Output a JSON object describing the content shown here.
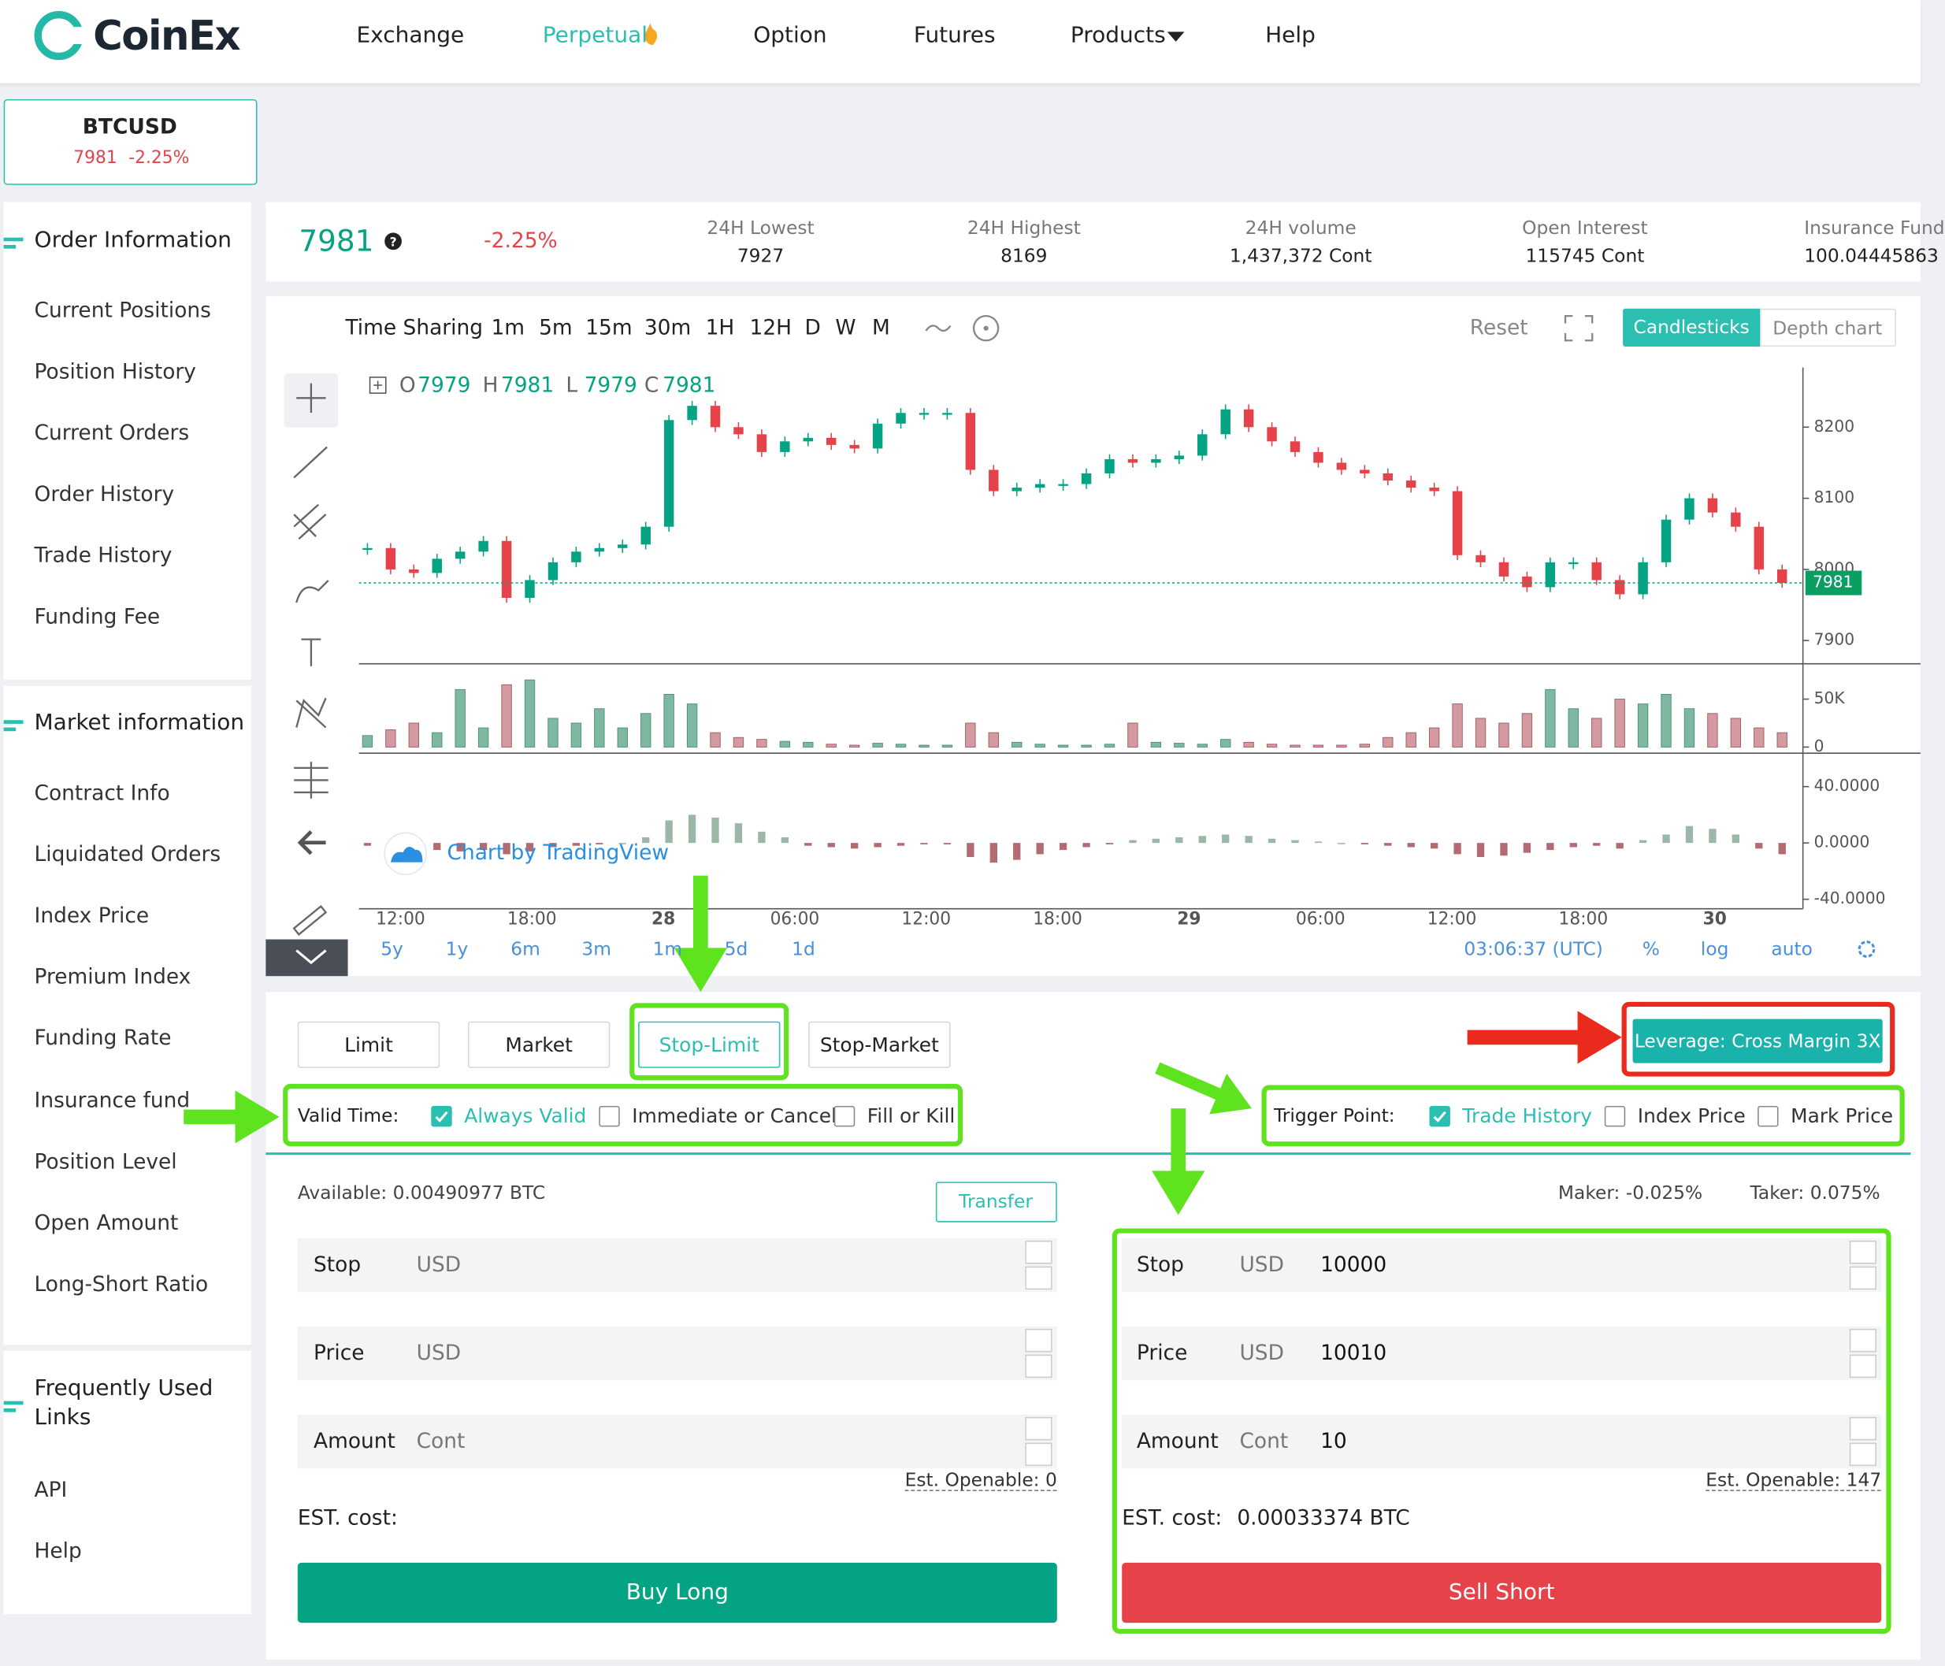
{
  "header": {
    "logo": "CoinEx",
    "nav": [
      "Exchange",
      "Perpetual",
      "Option",
      "Futures",
      "Products",
      "Help"
    ]
  },
  "ticker_card": {
    "symbol": "BTCUSD",
    "price": "7981",
    "change": "-2.25%"
  },
  "sidebar": [
    {
      "title": "Order Information",
      "items": [
        "Current Positions",
        "Position History",
        "Current Orders",
        "Order History",
        "Trade History",
        "Funding Fee"
      ]
    },
    {
      "title": "Market information",
      "items": [
        "Contract Info",
        "Liquidated Orders",
        "Index Price",
        "Premium Index",
        "Funding Rate",
        "Insurance fund",
        "Position Level",
        "Open Amount",
        "Long-Short Ratio"
      ]
    },
    {
      "title": "Frequently Used Links",
      "items": [
        "API",
        "Help"
      ]
    }
  ],
  "stats": {
    "price": "7981",
    "change": "-2.25%",
    "items": [
      {
        "label": "24H Lowest",
        "value": "7927"
      },
      {
        "label": "24H Highest",
        "value": "8169"
      },
      {
        "label": "24H volume",
        "value": "1,437,372 Cont"
      },
      {
        "label": "Open Interest",
        "value": "115745 Cont"
      },
      {
        "label": "Insurance Fund",
        "value": "100.04445863"
      }
    ]
  },
  "chart": {
    "toolbar": {
      "intervals": [
        "Time Sharing",
        "1m",
        "5m",
        "15m",
        "30m",
        "1H",
        "12H",
        "D",
        "W",
        "M"
      ],
      "reset": "Reset",
      "views": [
        "Candlesticks",
        "Depth chart"
      ]
    },
    "ohlc": [
      {
        "label": "O",
        "value": "7979"
      },
      {
        "label": "H",
        "value": "7981"
      },
      {
        "label": "L",
        "value": "7979"
      },
      {
        "label": "C",
        "value": "7981"
      }
    ],
    "watermark": "Chart by TradingView",
    "price_axis": {
      "ylim": [
        7869,
        8284
      ],
      "yticks": [
        7900,
        8000,
        8100,
        8200
      ]
    },
    "last_price": 7981,
    "closes": [
      8030,
      8000,
      7995,
      8015,
      8025,
      8040,
      7960,
      7985,
      8010,
      8025,
      8030,
      8035,
      8060,
      8210,
      8230,
      8200,
      8190,
      8165,
      8180,
      8185,
      8175,
      8170,
      8205,
      8220,
      8220,
      8220,
      8140,
      8110,
      8115,
      8120,
      8120,
      8135,
      8155,
      8150,
      8155,
      8160,
      8190,
      8225,
      8200,
      8180,
      8165,
      8150,
      8140,
      8135,
      8125,
      8115,
      8110,
      8020,
      8010,
      7990,
      7975,
      8010,
      8010,
      7985,
      7965,
      8010,
      8070,
      8100,
      8080,
      8060,
      8000,
      7981
    ],
    "volume": {
      "ylim": [
        0,
        83000
      ],
      "yticks": [
        0,
        {
          "value": 50000,
          "label": "50K"
        }
      ],
      "values": [
        12000,
        18000,
        25000,
        15000,
        60000,
        20000,
        65000,
        70000,
        30000,
        25000,
        40000,
        20000,
        35000,
        55000,
        45000,
        15000,
        10000,
        8000,
        6000,
        5000,
        3000,
        2000,
        4000,
        3000,
        2000,
        2000,
        25000,
        15000,
        5000,
        3000,
        2000,
        2000,
        3000,
        25000,
        5000,
        4000,
        3000,
        8000,
        5000,
        3000,
        2000,
        2000,
        2000,
        3000,
        10000,
        15000,
        20000,
        45000,
        30000,
        25000,
        35000,
        60000,
        40000,
        30000,
        50000,
        45000,
        55000,
        40000,
        35000,
        30000,
        20000,
        15000
      ]
    },
    "macd": {
      "ylim": [
        -45,
        62
      ],
      "yticks": [
        {
          "value": 40,
          "label": "40.0000"
        },
        {
          "value": 0,
          "label": "0.0000"
        },
        {
          "value": -40,
          "label": "-40.0000"
        }
      ],
      "values": [
        -2,
        -3,
        -4,
        -5,
        -6,
        -5,
        -8,
        -6,
        -3,
        -2,
        -1,
        0,
        4,
        16,
        20,
        18,
        14,
        8,
        4,
        -2,
        -3,
        -4,
        -3,
        -2,
        -1,
        -1,
        -10,
        -14,
        -12,
        -8,
        -5,
        -3,
        -1,
        2,
        3,
        4,
        5,
        6,
        5,
        3,
        2,
        1,
        0,
        -1,
        -2,
        -3,
        -4,
        -8,
        -10,
        -9,
        -7,
        -5,
        -3,
        -2,
        -4,
        2,
        6,
        12,
        10,
        6,
        -4,
        -8
      ]
    },
    "x_labels": [
      "12:00",
      "18:00",
      "28",
      "06:00",
      "12:00",
      "18:00",
      "29",
      "06:00",
      "12:00",
      "18:00",
      "30"
    ],
    "ranges": [
      "5y",
      "1y",
      "6m",
      "3m",
      "1m",
      "5d",
      "1d"
    ],
    "time": "03:06:37 (UTC)",
    "scale_options": [
      "%",
      "log",
      "auto"
    ]
  },
  "order": {
    "types": [
      "Limit",
      "Market",
      "Stop-Limit",
      "Stop-Market"
    ],
    "leverage": "Leverage: Cross Margin 3X",
    "valid_time": {
      "label": "Valid Time:",
      "options": [
        {
          "label": "Always Valid",
          "checked": true
        },
        {
          "label": "Immediate or Cancel",
          "checked": false
        },
        {
          "label": "Fill or Kill",
          "checked": false
        }
      ]
    },
    "trigger_point": {
      "label": "Trigger Point:",
      "options": [
        {
          "label": "Trade History",
          "checked": true
        },
        {
          "label": "Index Price",
          "checked": false
        },
        {
          "label": "Mark Price",
          "checked": false
        }
      ]
    },
    "available": "Available: 0.00490977 BTC",
    "transfer": "Transfer",
    "maker": "Maker: -0.025%",
    "taker": "Taker: 0.075%",
    "buy": {
      "fields": [
        {
          "label": "Stop",
          "unit": "USD"
        },
        {
          "label": "Price",
          "unit": "USD"
        },
        {
          "label": "Amount",
          "unit": "Cont"
        }
      ],
      "est_openable": "Est. Openable: 0",
      "est_cost_label": "EST. cost:",
      "button": "Buy Long"
    },
    "sell": {
      "fields": [
        {
          "label": "Stop",
          "unit": "USD",
          "value": "10000"
        },
        {
          "label": "Price",
          "unit": "USD",
          "value": "10010"
        },
        {
          "label": "Amount",
          "unit": "Cont",
          "value": "10"
        }
      ],
      "est_openable": "Est. Openable: 147",
      "est_cost_label": "EST. cost:",
      "est_cost": "0.00033374 BTC",
      "button": "Sell Short"
    }
  }
}
